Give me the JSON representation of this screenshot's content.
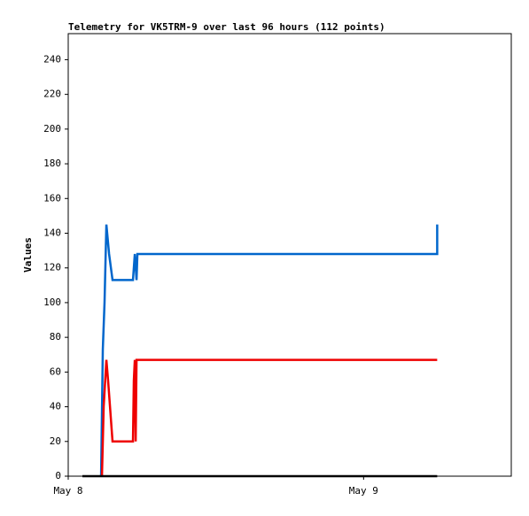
{
  "chart_data": {
    "type": "line",
    "title": "Telemetry for VK5TRM-9 over last 96 hours (112 points)",
    "y_label": "Values",
    "xlim": [
      0,
      36
    ],
    "xticks": [
      {
        "value": 0,
        "label": "May 8"
      },
      {
        "value": 24,
        "label": "May 9"
      }
    ],
    "ylim": [
      0,
      255
    ],
    "yticks": [
      0,
      20,
      40,
      60,
      80,
      100,
      120,
      140,
      160,
      180,
      200,
      220,
      240
    ],
    "series": [
      {
        "color": "#0066cc",
        "x": [
          2.67,
          2.81,
          2.95,
          3.1,
          3.32,
          3.6,
          5.26,
          5.41,
          5.55,
          5.62,
          29.98,
          29.98
        ],
        "values": [
          0,
          73,
          100,
          145,
          128,
          113,
          113,
          128,
          113,
          128,
          128,
          145
        ]
      },
      {
        "color": "#ee0000",
        "x": [
          2.74,
          2.88,
          3.1,
          3.24,
          3.6,
          5.26,
          5.33,
          5.41,
          5.48,
          5.55,
          29.98
        ],
        "values": [
          0,
          40,
          67,
          55,
          20,
          20,
          55,
          67,
          20,
          67,
          67
        ]
      },
      {
        "color": "#000000",
        "x": [
          1.15,
          29.98
        ],
        "values": [
          0,
          0
        ]
      }
    ]
  }
}
